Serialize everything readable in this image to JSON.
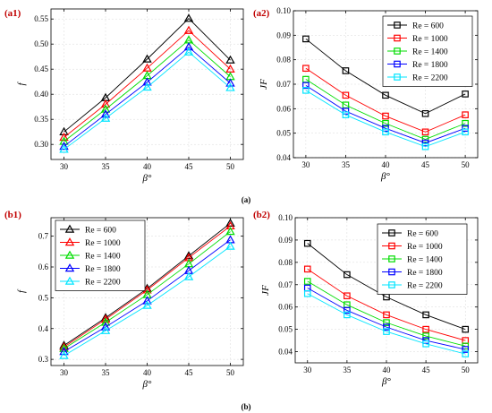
{
  "captions": [
    "(a)",
    "(b)"
  ],
  "colors": {
    "Re600": "#000000",
    "Re1000": "#ff0000",
    "Re1400": "#00dd00",
    "Re1800": "#0000ff",
    "Re2200": "#00e5ff"
  },
  "chart_data": [
    {
      "id": "a1",
      "panel_label": "(a1)",
      "type": "line",
      "marker": "triangle",
      "xlabel": "β°",
      "ylabel": "f",
      "x": [
        30,
        35,
        40,
        45,
        50
      ],
      "xticks": [
        30,
        35,
        40,
        45,
        50
      ],
      "ylim": [
        0.27,
        0.57
      ],
      "yticks": [
        0.3,
        0.35,
        0.4,
        0.45,
        0.5,
        0.55
      ],
      "ytick_decimals": 2,
      "legend": "none",
      "series": [
        {
          "name": "Re = 600",
          "color": "#000000",
          "values": [
            0.325,
            0.393,
            0.47,
            0.551,
            0.468
          ]
        },
        {
          "name": "Re = 1000",
          "color": "#ff0000",
          "values": [
            0.314,
            0.38,
            0.452,
            0.527,
            0.45
          ]
        },
        {
          "name": "Re = 1400",
          "color": "#00dd00",
          "values": [
            0.306,
            0.37,
            0.437,
            0.508,
            0.435
          ]
        },
        {
          "name": "Re = 1800",
          "color": "#0000ff",
          "values": [
            0.296,
            0.36,
            0.424,
            0.494,
            0.422
          ]
        },
        {
          "name": "Re = 2200",
          "color": "#00e5ff",
          "values": [
            0.29,
            0.352,
            0.414,
            0.484,
            0.413
          ]
        }
      ]
    },
    {
      "id": "a2",
      "panel_label": "(a2)",
      "type": "line",
      "marker": "square",
      "xlabel": "β°",
      "ylabel": "JF",
      "x": [
        30,
        35,
        40,
        45,
        50
      ],
      "xticks": [
        30,
        35,
        40,
        45,
        50
      ],
      "ylim": [
        0.04,
        0.1
      ],
      "yticks": [
        0.04,
        0.05,
        0.06,
        0.07,
        0.08,
        0.09,
        0.1
      ],
      "ytick_decimals": 2,
      "legend": "top-right",
      "series": [
        {
          "name": "Re = 600",
          "color": "#000000",
          "values": [
            0.0885,
            0.0755,
            0.0655,
            0.058,
            0.066
          ]
        },
        {
          "name": "Re = 1000",
          "color": "#ff0000",
          "values": [
            0.0765,
            0.0655,
            0.057,
            0.0505,
            0.0575
          ]
        },
        {
          "name": "Re = 1400",
          "color": "#00dd00",
          "values": [
            0.072,
            0.0615,
            0.054,
            0.0475,
            0.054
          ]
        },
        {
          "name": "Re = 1800",
          "color": "#0000ff",
          "values": [
            0.0695,
            0.059,
            0.052,
            0.046,
            0.052
          ]
        },
        {
          "name": "Re = 2200",
          "color": "#00e5ff",
          "values": [
            0.0675,
            0.0575,
            0.0505,
            0.0445,
            0.0505
          ]
        }
      ]
    },
    {
      "id": "b1",
      "panel_label": "(b1)",
      "type": "line",
      "marker": "triangle",
      "xlabel": "β°",
      "ylabel": "f",
      "x": [
        30,
        35,
        40,
        45,
        50
      ],
      "xticks": [
        30,
        35,
        40,
        45,
        50
      ],
      "ylim": [
        0.28,
        0.76
      ],
      "yticks": [
        0.3,
        0.4,
        0.5,
        0.6,
        0.7
      ],
      "ytick_decimals": 1,
      "legend": "top-left",
      "series": [
        {
          "name": "Re = 600",
          "color": "#000000",
          "values": [
            0.345,
            0.435,
            0.53,
            0.636,
            0.742
          ]
        },
        {
          "name": "Re = 1000",
          "color": "#ff0000",
          "values": [
            0.34,
            0.43,
            0.525,
            0.63,
            0.733
          ]
        },
        {
          "name": "Re = 1400",
          "color": "#00dd00",
          "values": [
            0.335,
            0.42,
            0.51,
            0.61,
            0.715
          ]
        },
        {
          "name": "Re = 1800",
          "color": "#0000ff",
          "values": [
            0.325,
            0.405,
            0.49,
            0.588,
            0.688
          ]
        },
        {
          "name": "Re = 2200",
          "color": "#00e5ff",
          "values": [
            0.312,
            0.393,
            0.475,
            0.568,
            0.667
          ]
        }
      ]
    },
    {
      "id": "b2",
      "panel_label": "(b2)",
      "type": "line",
      "marker": "square",
      "xlabel": "β°",
      "ylabel": "JF",
      "x": [
        30,
        35,
        40,
        45,
        50
      ],
      "xticks": [
        30,
        35,
        40,
        45,
        50
      ],
      "ylim": [
        0.035,
        0.1
      ],
      "yticks": [
        0.04,
        0.05,
        0.06,
        0.07,
        0.08,
        0.09,
        0.1
      ],
      "ytick_decimals": 2,
      "legend": "top-right",
      "series": [
        {
          "name": "Re = 600",
          "color": "#000000",
          "values": [
            0.0885,
            0.0745,
            0.0645,
            0.0565,
            0.05
          ]
        },
        {
          "name": "Re = 1000",
          "color": "#ff0000",
          "values": [
            0.077,
            0.065,
            0.0565,
            0.05,
            0.045
          ]
        },
        {
          "name": "Re = 1400",
          "color": "#00dd00",
          "values": [
            0.0715,
            0.061,
            0.053,
            0.047,
            0.0425
          ]
        },
        {
          "name": "Re = 1800",
          "color": "#0000ff",
          "values": [
            0.0685,
            0.0585,
            0.051,
            0.045,
            0.041
          ]
        },
        {
          "name": "Re = 2200",
          "color": "#00e5ff",
          "values": [
            0.066,
            0.0565,
            0.049,
            0.0435,
            0.039
          ]
        }
      ]
    }
  ]
}
